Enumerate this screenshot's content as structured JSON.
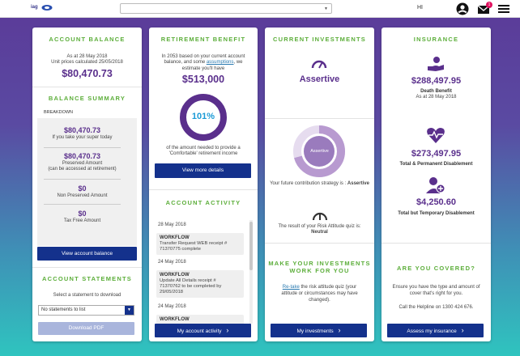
{
  "topbar": {
    "logo_text": "iag",
    "greeting": "HI",
    "notification_count": "1",
    "select_value": ""
  },
  "account_balance": {
    "title": "ACCOUNT BALANCE",
    "as_at": "As at 28 May 2018",
    "unit_prices": "Unit prices calculated 25/05/2018",
    "amount": "$80,470.73"
  },
  "balance_summary": {
    "title": "BALANCE SUMMARY",
    "tab": "BREAKDOWN",
    "items": [
      {
        "value": "$80,470.73",
        "label": "If you take your super today"
      },
      {
        "value": "$80,470.73",
        "label": "Preserved Amount",
        "label2": "(can be accessed at retirement)"
      },
      {
        "value": "$0",
        "label": "Non Preserved Amount"
      },
      {
        "value": "$0",
        "label": "Tax Free Amount"
      }
    ],
    "button": "View account balance"
  },
  "account_statements": {
    "title": "ACCOUNT STATEMENTS",
    "instruction": "Select a statement to download",
    "select_value": "No statements to list",
    "button": "Download PDF"
  },
  "retirement": {
    "title": "RETIREMENT BENEFIT",
    "line1": "In 2053 based on your current account",
    "line2a": "balance, and some ",
    "assumptions_link": "assumptions",
    "line2b": ", we",
    "line3": "estimate you'll have",
    "amount": "$513,000",
    "percent": "101%",
    "percent_value": 101,
    "desc1": "of the amount needed to provide a",
    "desc2": "'Comfortable' retirement income",
    "button": "View more details"
  },
  "activity": {
    "title": "ACCOUNT ACTIVITY",
    "entries": [
      {
        "date": "28 May 2018",
        "type": "WORKFLOW",
        "l1": "Transfer Request WEB receipt #",
        "l2": "71370775 complete"
      },
      {
        "date": "24 May 2018",
        "type": "WORKFLOW",
        "l1": "Update All Details receipt #",
        "l2": "71370762 to be completed by",
        "l3": "29/05/2018"
      },
      {
        "date": "24 May 2018",
        "type": "WORKFLOW"
      }
    ],
    "button": "My account activity"
  },
  "investments": {
    "title": "CURRENT INVESTMENTS",
    "strategy": "Assertive",
    "ring_label": "Assertive",
    "future_text": "Your future contribution strategy is : ",
    "future_value": "Assertive",
    "quiz_text": "The result of your Risk Attitude quiz is:",
    "quiz_value": "Neutral",
    "make_title1": "MAKE YOUR INVESTMENTS",
    "make_title2": "WORK FOR YOU",
    "retake_link": "Re-take",
    "retake_text1": " the risk attitude quiz (your",
    "retake_text2": "attitude or circumstances may have",
    "retake_text3": "changed).",
    "button": "My investments"
  },
  "insurance": {
    "title": "INSURANCE",
    "death_amount": "$288,497.95",
    "death_label": "Death Benefit",
    "death_asat": "As at 28 May 2018",
    "tpd_amount": "$273,497.95",
    "tpd_label": "Total & Permanent Disablement",
    "ttd_amount": "$4,250.60",
    "ttd_label": "Total but Temporary Disablement",
    "covered_title": "ARE YOU COVERED?",
    "covered1": "Ensure you have the type and amount of",
    "covered2": "cover that's right for you.",
    "helpline": "Call the Helpline on 1300 424 676.",
    "button": "Assess my insurance"
  },
  "colors": {
    "accent_green": "#5cae3a",
    "purple": "#5a2f8c",
    "navy_button": "#14318c"
  }
}
